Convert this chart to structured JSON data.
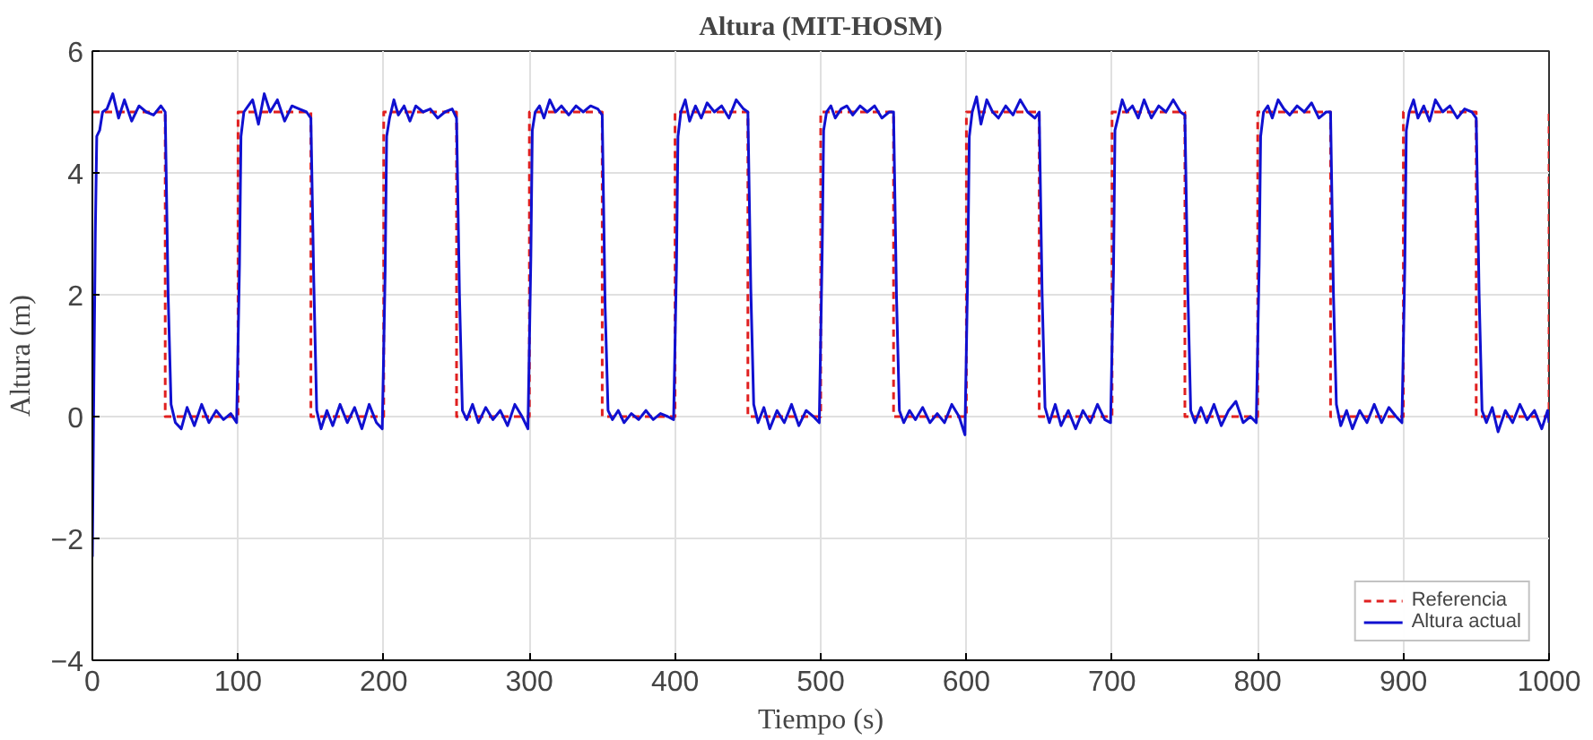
{
  "chart_data": {
    "type": "line",
    "title": "Altura (MIT-HOSM)",
    "xlabel": "Tiempo (s)",
    "ylabel": "Altura (m)",
    "xlim": [
      0,
      1000
    ],
    "ylim": [
      -4,
      6
    ],
    "xticks": [
      0,
      100,
      200,
      300,
      400,
      500,
      600,
      700,
      800,
      900,
      1000
    ],
    "yticks": [
      -4,
      -2,
      0,
      2,
      4,
      6
    ],
    "grid": true,
    "legend": "bottom right",
    "marker": "none",
    "series": [
      {
        "name": "Referencia",
        "color": "#e02020",
        "line_style": "dashed",
        "x": [
          0,
          50,
          50,
          100,
          100,
          150,
          150,
          200,
          200,
          250,
          250,
          300,
          300,
          350,
          350,
          400,
          400,
          450,
          450,
          500,
          500,
          550,
          550,
          600,
          600,
          650,
          650,
          700,
          700,
          750,
          750,
          800,
          800,
          850,
          850,
          900,
          900,
          950,
          950,
          1000,
          1000
        ],
        "values": [
          5,
          5,
          0,
          0,
          5,
          5,
          0,
          0,
          5,
          5,
          0,
          0,
          5,
          5,
          0,
          0,
          5,
          5,
          0,
          0,
          5,
          5,
          0,
          0,
          5,
          5,
          0,
          0,
          5,
          5,
          0,
          0,
          5,
          5,
          0,
          0,
          5,
          5,
          0,
          0,
          5
        ]
      },
      {
        "name": "Altura actual",
        "color": "#1010d0",
        "line_style": "solid",
        "x": [
          0,
          1,
          2,
          3,
          5,
          7,
          10,
          14,
          18,
          22,
          27,
          32,
          37,
          42,
          47,
          50,
          52,
          54,
          57,
          61,
          65,
          70,
          75,
          80,
          85,
          90,
          95,
          99,
          101,
          102,
          104,
          107,
          110,
          114,
          118,
          122,
          127,
          132,
          137,
          142,
          147,
          150,
          152,
          154,
          157,
          161,
          165,
          170,
          175,
          180,
          185,
          190,
          195,
          199,
          201,
          202,
          204,
          207,
          210,
          214,
          218,
          222,
          227,
          232,
          237,
          242,
          247,
          250,
          252,
          254,
          257,
          261,
          265,
          270,
          275,
          280,
          285,
          290,
          295,
          299,
          301,
          302,
          304,
          307,
          310,
          314,
          318,
          322,
          327,
          332,
          337,
          342,
          347,
          350,
          352,
          354,
          357,
          361,
          365,
          370,
          375,
          380,
          385,
          390,
          395,
          399,
          401,
          402,
          404,
          407,
          410,
          414,
          418,
          422,
          427,
          432,
          437,
          442,
          447,
          450,
          452,
          454,
          457,
          461,
          465,
          470,
          475,
          480,
          485,
          490,
          495,
          499,
          501,
          502,
          504,
          507,
          510,
          514,
          518,
          522,
          527,
          532,
          537,
          542,
          547,
          550,
          552,
          554,
          557,
          561,
          565,
          570,
          575,
          580,
          585,
          590,
          595,
          599,
          601,
          602,
          604,
          607,
          610,
          614,
          618,
          622,
          627,
          632,
          637,
          642,
          647,
          650,
          652,
          654,
          657,
          661,
          665,
          670,
          675,
          680,
          685,
          690,
          695,
          699,
          701,
          702,
          704,
          707,
          710,
          714,
          718,
          722,
          727,
          732,
          737,
          742,
          747,
          750,
          752,
          754,
          757,
          761,
          765,
          770,
          775,
          780,
          785,
          790,
          795,
          799,
          801,
          802,
          804,
          807,
          810,
          814,
          818,
          822,
          827,
          832,
          837,
          842,
          847,
          850,
          852,
          854,
          857,
          861,
          865,
          870,
          875,
          880,
          885,
          890,
          895,
          899,
          901,
          902,
          904,
          907,
          910,
          914,
          918,
          922,
          927,
          932,
          937,
          942,
          947,
          950,
          952,
          954,
          957,
          961,
          965,
          970,
          975,
          980,
          985,
          990,
          995,
          999,
          1000
        ],
        "values": [
          -2.3,
          0.5,
          3.0,
          4.6,
          4.7,
          5.0,
          5.05,
          5.3,
          4.9,
          5.2,
          4.85,
          5.1,
          5.0,
          4.95,
          5.1,
          5.0,
          2.0,
          0.2,
          -0.1,
          -0.2,
          0.15,
          -0.15,
          0.2,
          -0.1,
          0.1,
          -0.05,
          0.05,
          -0.1,
          2.5,
          4.6,
          5.0,
          5.1,
          5.2,
          4.8,
          5.3,
          5.0,
          5.2,
          4.85,
          5.1,
          5.05,
          5.0,
          4.9,
          2.2,
          0.1,
          -0.2,
          0.1,
          -0.15,
          0.2,
          -0.1,
          0.15,
          -0.2,
          0.2,
          -0.1,
          -0.2,
          2.4,
          4.6,
          4.9,
          5.2,
          4.95,
          5.1,
          4.85,
          5.1,
          5.0,
          5.05,
          4.9,
          5.0,
          5.05,
          4.9,
          2.0,
          0.1,
          -0.05,
          0.2,
          -0.1,
          0.15,
          -0.05,
          0.1,
          -0.15,
          0.2,
          0.0,
          -0.2,
          2.6,
          4.7,
          5.0,
          5.1,
          4.9,
          5.2,
          5.0,
          5.1,
          4.95,
          5.1,
          5.0,
          5.1,
          5.05,
          4.95,
          1.8,
          0.1,
          -0.05,
          0.1,
          -0.1,
          0.05,
          -0.05,
          0.1,
          -0.05,
          0.05,
          0.0,
          -0.05,
          2.5,
          4.6,
          5.0,
          5.2,
          4.85,
          5.1,
          4.9,
          5.15,
          5.0,
          5.1,
          4.9,
          5.2,
          5.05,
          5.0,
          2.1,
          0.2,
          -0.1,
          0.15,
          -0.2,
          0.1,
          -0.1,
          0.2,
          -0.15,
          0.1,
          0.0,
          -0.1,
          2.7,
          4.7,
          5.0,
          5.1,
          4.9,
          5.05,
          5.1,
          4.95,
          5.1,
          5.0,
          5.1,
          4.9,
          5.0,
          5.0,
          2.0,
          0.1,
          -0.1,
          0.1,
          -0.05,
          0.15,
          -0.1,
          0.05,
          -0.1,
          0.2,
          0.0,
          -0.3,
          2.5,
          4.6,
          5.0,
          5.25,
          4.8,
          5.2,
          5.0,
          4.9,
          5.1,
          4.95,
          5.2,
          5.0,
          4.9,
          5.0,
          2.0,
          0.15,
          -0.1,
          0.2,
          -0.15,
          0.1,
          -0.2,
          0.1,
          -0.1,
          0.2,
          -0.05,
          -0.1,
          2.4,
          4.7,
          4.9,
          5.2,
          5.0,
          5.1,
          4.9,
          5.2,
          4.9,
          5.1,
          5.0,
          5.2,
          5.0,
          4.95,
          2.1,
          0.1,
          -0.1,
          0.15,
          -0.1,
          0.2,
          -0.15,
          0.1,
          0.25,
          -0.1,
          0.0,
          -0.1,
          2.5,
          4.6,
          5.0,
          5.1,
          4.9,
          5.2,
          5.05,
          4.95,
          5.1,
          5.0,
          5.15,
          4.9,
          5.0,
          5.0,
          2.0,
          0.2,
          -0.15,
          0.1,
          -0.2,
          0.1,
          -0.1,
          0.2,
          -0.1,
          0.15,
          0.0,
          -0.1,
          2.5,
          4.7,
          5.0,
          5.2,
          4.9,
          5.1,
          4.85,
          5.2,
          5.0,
          5.1,
          4.9,
          5.05,
          5.0,
          4.9,
          2.0,
          0.1,
          -0.1,
          0.15,
          -0.25,
          0.1,
          -0.1,
          0.2,
          -0.05,
          0.1,
          -0.2,
          0.1,
          -0.1
        ]
      }
    ]
  }
}
